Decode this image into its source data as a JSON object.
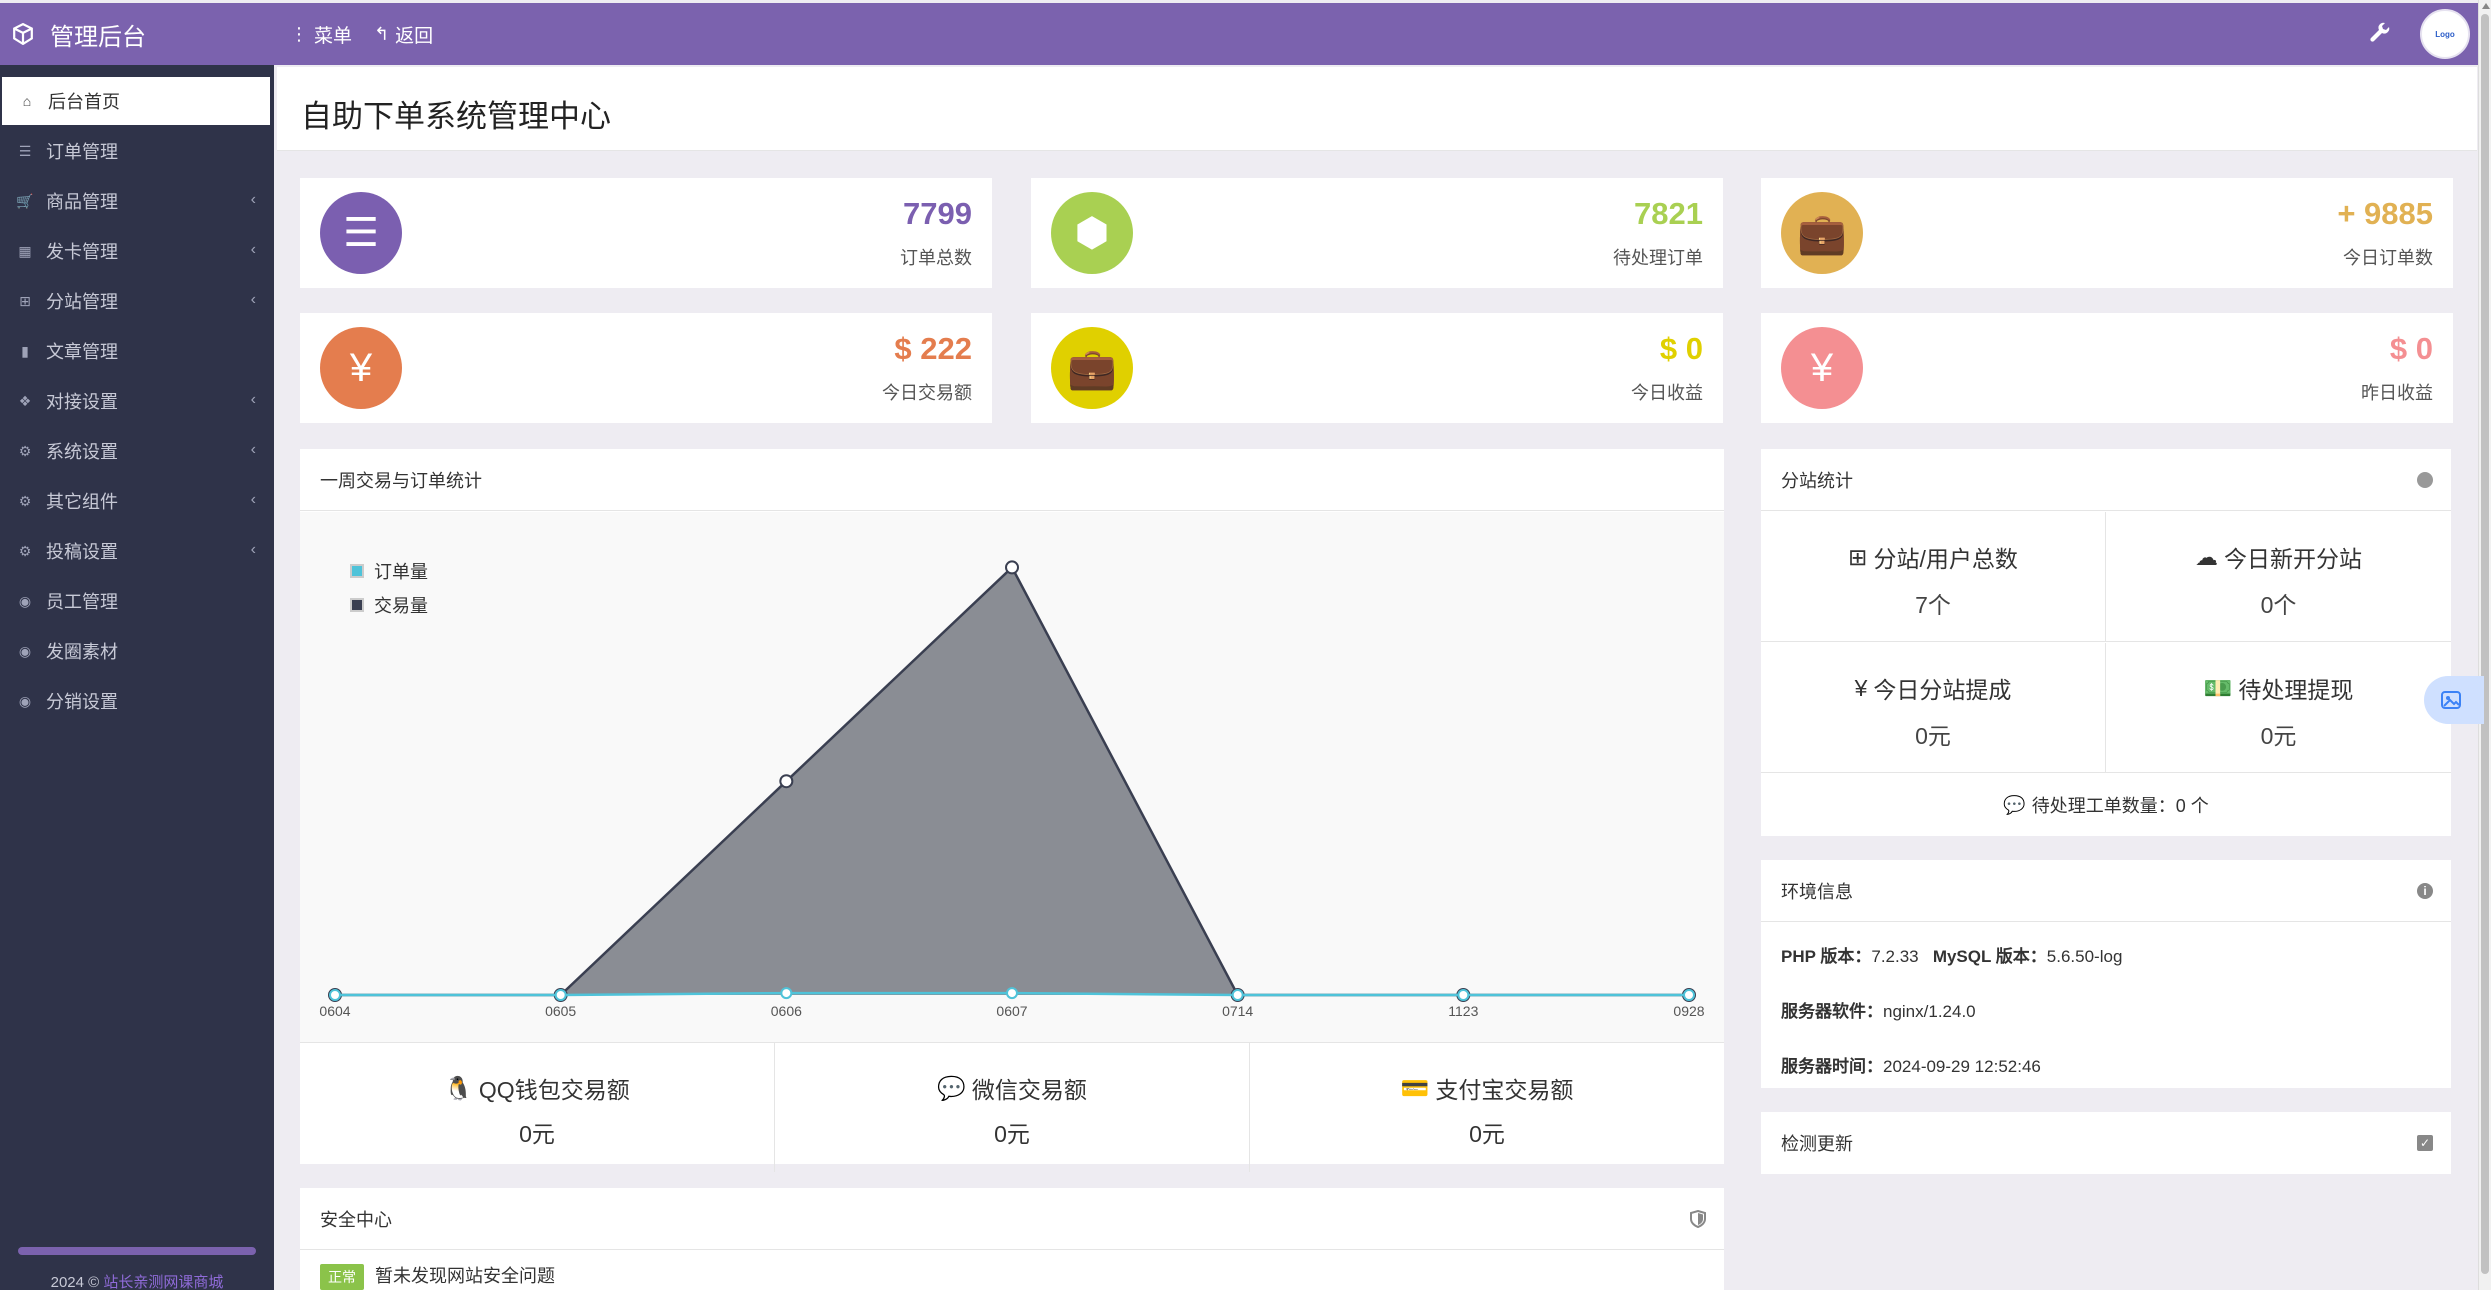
{
  "app": {
    "brand": "管理后台",
    "menu_label": "菜单",
    "back_label": "返回",
    "avatar_text": "Logo"
  },
  "sidebar": {
    "items": [
      {
        "label": "后台首页",
        "icon": "home-icon",
        "active": true,
        "has_sub": false
      },
      {
        "label": "订单管理",
        "icon": "list-icon",
        "has_sub": false
      },
      {
        "label": "商品管理",
        "icon": "cart-icon",
        "has_sub": true
      },
      {
        "label": "发卡管理",
        "icon": "grid-icon",
        "has_sub": true
      },
      {
        "label": "分站管理",
        "icon": "sitemap-icon",
        "has_sub": true
      },
      {
        "label": "文章管理",
        "icon": "book-icon",
        "has_sub": false
      },
      {
        "label": "对接设置",
        "icon": "cubes-icon",
        "has_sub": true
      },
      {
        "label": "系统设置",
        "icon": "gear-icon",
        "has_sub": true
      },
      {
        "label": "其它组件",
        "icon": "cogs-icon",
        "has_sub": true
      },
      {
        "label": "投稿设置",
        "icon": "cogs-icon",
        "has_sub": true
      },
      {
        "label": "员工管理",
        "icon": "user-circle-icon",
        "has_sub": false
      },
      {
        "label": "发圈素材",
        "icon": "user-circle-icon",
        "has_sub": false
      },
      {
        "label": "分销设置",
        "icon": "user-circle-icon",
        "has_sub": false
      }
    ],
    "footer_year": "2024 ©",
    "footer_link": "站长亲测网课商城"
  },
  "page": {
    "title": "自助下单系统管理中心"
  },
  "stats": [
    {
      "value": "7799",
      "label": "订单总数",
      "color": "#7b5fb0",
      "icon": "ordered-list-icon"
    },
    {
      "value": "7821",
      "label": "待处理订单",
      "color": "#a9d052",
      "icon": "cube-icon"
    },
    {
      "value": "+ 9885",
      "label": "今日订单数",
      "color": "#e1b153",
      "icon": "briefcase-icon"
    },
    {
      "value": "$ 222",
      "label": "今日交易额",
      "color": "#e47d4e",
      "icon": "yen-icon"
    },
    {
      "value": "$ 0",
      "label": "今日收益",
      "color": "#e0d000",
      "icon": "briefcase-icon"
    },
    {
      "value": "$ 0",
      "label": "昨日收益",
      "color": "#f48f92",
      "icon": "yen-icon"
    }
  ],
  "weekly_panel": {
    "title": "一周交易与订单统计"
  },
  "chart_data": {
    "type": "area",
    "categories": [
      "0604",
      "0605",
      "0606",
      "0607",
      "0714",
      "1123",
      "0928"
    ],
    "series": [
      {
        "name": "订单量",
        "values": [
          0,
          0,
          1,
          1,
          0,
          0,
          0
        ],
        "color": "#4fc3d9"
      },
      {
        "name": "交易量",
        "values": [
          0,
          0,
          111,
          222,
          0,
          0,
          0
        ],
        "color": "#3a3f51"
      }
    ],
    "ylim": [
      0,
      230
    ],
    "legend_position": "top-left",
    "grid": false
  },
  "payments": [
    {
      "label": "QQ钱包交易额",
      "value": "0元",
      "icon": "qq-icon"
    },
    {
      "label": "微信交易额",
      "value": "0元",
      "icon": "wechat-icon"
    },
    {
      "label": "支付宝交易额",
      "value": "0元",
      "icon": "credit-card-icon"
    }
  ],
  "substation": {
    "title": "分站统计",
    "cells": [
      {
        "label": "分站/用户总数",
        "value": "7个",
        "icon": "sitemap-icon"
      },
      {
        "label": "今日新开分站",
        "value": "0个",
        "icon": "cloud-icon"
      },
      {
        "label": "今日分站提成",
        "value": "0元",
        "icon": "yen-icon",
        "prefix": "¥"
      },
      {
        "label": "待处理提现",
        "value": "0元",
        "icon": "money-icon"
      }
    ],
    "ticket": "待处理工单数量：0 个"
  },
  "env": {
    "title": "环境信息",
    "php_label": "PHP 版本：",
    "php_value": "7.2.33",
    "mysql_label": "MySQL 版本：",
    "mysql_value": "5.6.50-log",
    "server_label": "服务器软件：",
    "server_value": "nginx/1.24.0",
    "time_label": "服务器时间：",
    "time_value": "2024-09-29 12:52:46"
  },
  "update": {
    "title": "检测更新"
  },
  "security": {
    "title": "安全中心",
    "badge": "正常",
    "message": "暂未发现网站安全问题"
  }
}
